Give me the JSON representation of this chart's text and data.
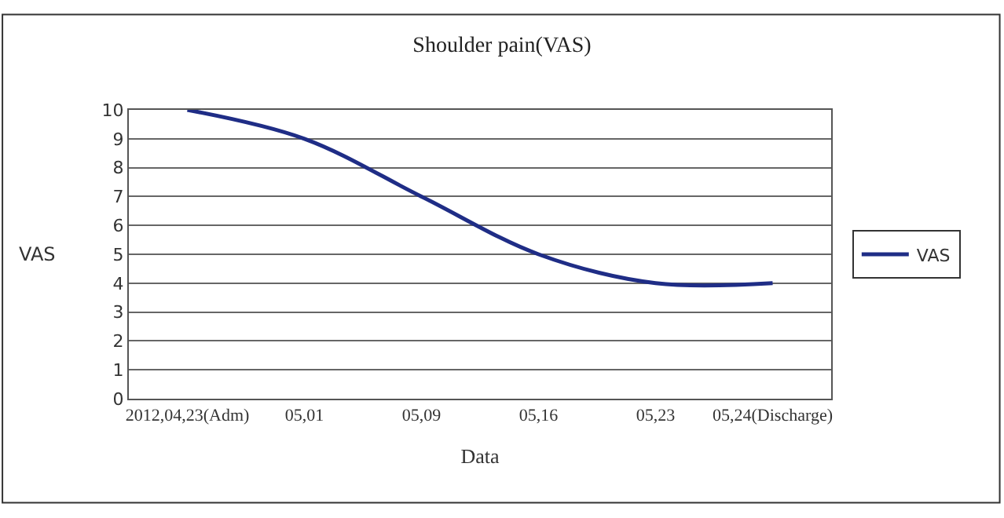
{
  "chart_data": {
    "type": "line",
    "title": "Shoulder pain(VAS)",
    "xlabel": "Data",
    "ylabel": "VAS",
    "categories": [
      "2012,04,23(Adm)",
      "05,01",
      "05,09",
      "05,16",
      "05,23",
      "05,24(Discharge)"
    ],
    "series": [
      {
        "name": "VAS",
        "color": "#1f2d86",
        "values": [
          10,
          9,
          7,
          5,
          4,
          4
        ]
      }
    ],
    "ylim": [
      0,
      10
    ],
    "yticks": [
      0,
      1,
      2,
      3,
      4,
      5,
      6,
      7,
      8,
      9,
      10
    ],
    "grid": "y",
    "legend": "right",
    "marker": "none",
    "line_style": "solid"
  }
}
